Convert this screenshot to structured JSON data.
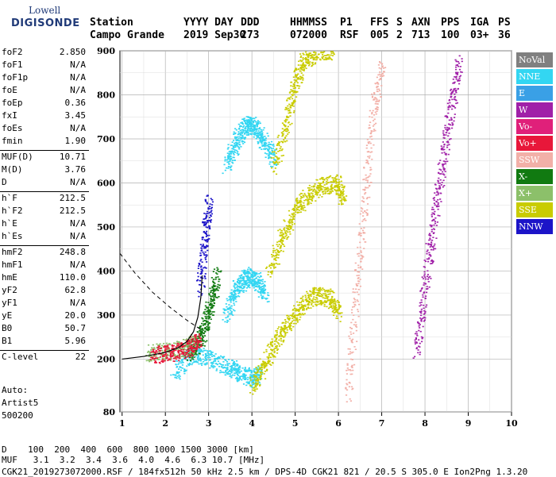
{
  "logo": {
    "brand": "Lowell",
    "product": "DIGISONDE"
  },
  "header": {
    "row1": [
      {
        "label": "Station"
      },
      {
        "label": "YYYY DAY"
      },
      {
        "label": "DDD"
      },
      {
        "label": "HHMMSS"
      },
      {
        "label": "P1"
      },
      {
        "label": "FFS"
      },
      {
        "label": "S"
      },
      {
        "label": "AXN"
      },
      {
        "label": "PPS"
      },
      {
        "label": "IGA"
      },
      {
        "label": "PS"
      }
    ],
    "row2": [
      {
        "label": "Campo Grande"
      },
      {
        "label": "2019 Sep30"
      },
      {
        "label": "273"
      },
      {
        "label": "072000"
      },
      {
        "label": "RSF"
      },
      {
        "label": "005"
      },
      {
        "label": "2"
      },
      {
        "label": "713"
      },
      {
        "label": "100"
      },
      {
        "label": "03+"
      },
      {
        "label": "36"
      }
    ]
  },
  "params": [
    {
      "k": "foF2",
      "v": "2.850"
    },
    {
      "k": "foF1",
      "v": "N/A"
    },
    {
      "k": "foF1p",
      "v": "N/A"
    },
    {
      "k": "foE",
      "v": "N/A"
    },
    {
      "k": "foEp",
      "v": "0.36"
    },
    {
      "k": "fxI",
      "v": "3.45"
    },
    {
      "k": "foEs",
      "v": "N/A"
    },
    {
      "k": "fmin",
      "v": "1.90"
    },
    {
      "k": "MUF(D)",
      "v": "10.71",
      "sep": true
    },
    {
      "k": "M(D)",
      "v": "3.76"
    },
    {
      "k": "D",
      "v": "N/A"
    },
    {
      "k": "h`F",
      "v": "212.5",
      "sep": true
    },
    {
      "k": "h`F2",
      "v": "212.5"
    },
    {
      "k": "h`E",
      "v": "N/A"
    },
    {
      "k": "h`Es",
      "v": "N/A"
    },
    {
      "k": "hmF2",
      "v": "248.8",
      "sep": true
    },
    {
      "k": "hmF1",
      "v": "N/A"
    },
    {
      "k": "hmE",
      "v": "110.0"
    },
    {
      "k": "yF2",
      "v": "62.8"
    },
    {
      "k": "yF1",
      "v": "N/A"
    },
    {
      "k": "yE",
      "v": "20.0"
    },
    {
      "k": "B0",
      "v": "50.7"
    },
    {
      "k": "B1",
      "v": "5.96"
    },
    {
      "k": "C-level",
      "v": "22",
      "sep": true
    }
  ],
  "auto": {
    "title": "Auto:",
    "artist": "Artist5",
    "version": "500200"
  },
  "legend": [
    {
      "label": "NoVal",
      "color": "#808080"
    },
    {
      "label": "NNE",
      "color": "#33d6f2"
    },
    {
      "label": "E",
      "color": "#3aa0e6"
    },
    {
      "label": "W",
      "color": "#a020a8"
    },
    {
      "label": "Vo-",
      "color": "#e0207a"
    },
    {
      "label": "Vo+",
      "color": "#e8173a"
    },
    {
      "label": "SSW",
      "color": "#f2b0a8"
    },
    {
      "label": "X-",
      "color": "#117a11"
    },
    {
      "label": "X+",
      "color": "#8cc06a"
    },
    {
      "label": "SSE",
      "color": "#c9cc00"
    },
    {
      "label": "NNW",
      "color": "#1c14c8"
    }
  ],
  "footer": {
    "d_row": "D    100  200  400  600  800 1000 1500 3000 [km]",
    "muf_row": "MUF   3.1  3.2  3.4  3.6  4.0  4.6  6.3 10.7 [MHz]",
    "file_row": "CGK21_2019273072000.RSF / 184fx512h 50 kHz 2.5 km / DPS-4D CGK21 821 / 20.5 S 305.0 E Ion2Png 1.3.20"
  },
  "chart_data": {
    "type": "scatter",
    "title": "",
    "xlabel": "",
    "ylabel": "",
    "xlim": [
      0.95,
      10.0
    ],
    "ylim": [
      80,
      900
    ],
    "x_ticks": [
      "1",
      "2",
      "3",
      "4",
      "5",
      "6",
      "7",
      "8",
      "9",
      "10"
    ],
    "y_ticks": [
      "80",
      "200",
      "300",
      "400",
      "500",
      "600",
      "700",
      "800",
      "900"
    ],
    "grid": true,
    "profile_curve": {
      "x": [
        1.0,
        1.5,
        2.0,
        2.3,
        2.5,
        2.65,
        2.75,
        2.82,
        2.85
      ],
      "y": [
        200,
        206,
        215,
        226,
        240,
        262,
        295,
        340,
        390
      ]
    },
    "extrapolation_curve": {
      "x": [
        0.95,
        1.3,
        1.7,
        2.1,
        2.5,
        2.85
      ],
      "y": [
        440,
        395,
        352,
        318,
        288,
        265
      ]
    },
    "traces": [
      {
        "name": "NNE",
        "color": "#33d6f2",
        "x": [
          3.4,
          3.6,
          3.8,
          3.95,
          4.1,
          4.3,
          4.5
        ],
        "y": [
          640,
          690,
          725,
          735,
          720,
          690,
          650
        ]
      },
      {
        "name": "NNE",
        "color": "#33d6f2",
        "x": [
          3.4,
          3.6,
          3.8,
          3.95,
          4.1,
          4.3
        ],
        "y": [
          300,
          360,
          380,
          390,
          380,
          345
        ]
      },
      {
        "name": "NNE",
        "color": "#33d6f2",
        "x": [
          2.2,
          2.6,
          3.0,
          3.4,
          3.7,
          3.95,
          4.2
        ],
        "y": [
          170,
          210,
          205,
          185,
          170,
          155,
          170
        ]
      },
      {
        "name": "SSE",
        "color": "#c9cc00",
        "x": [
          4.5,
          4.8,
          5.0,
          5.2,
          5.5,
          5.9
        ],
        "y": [
          640,
          740,
          830,
          880,
          900,
          900
        ]
      },
      {
        "name": "SSE",
        "color": "#c9cc00",
        "x": [
          4.4,
          4.7,
          5.0,
          5.3,
          5.6,
          5.95,
          6.1
        ],
        "y": [
          400,
          480,
          540,
          575,
          595,
          600,
          560
        ]
      },
      {
        "name": "SSE",
        "color": "#c9cc00",
        "x": [
          4.0,
          4.3,
          4.6,
          4.9,
          5.2,
          5.5,
          5.8,
          6.0
        ],
        "y": [
          140,
          190,
          250,
          295,
          330,
          345,
          340,
          300
        ]
      },
      {
        "name": "SSW",
        "color": "#f2b0a8",
        "x": [
          6.2,
          6.4,
          6.6,
          6.8,
          7.0
        ],
        "y": [
          120,
          350,
          560,
          760,
          880
        ]
      },
      {
        "name": "X-",
        "color": "#117a11",
        "x": [
          2.5,
          2.75,
          2.9,
          3.05,
          3.2
        ],
        "y": [
          215,
          235,
          275,
          330,
          395
        ]
      },
      {
        "name": "X+",
        "color": "#8cc06a",
        "x": [
          1.6,
          2.0,
          2.4,
          2.7
        ],
        "y": [
          215,
          218,
          225,
          240
        ]
      },
      {
        "name": "Vo+",
        "color": "#e8173a",
        "x": [
          1.7,
          2.1,
          2.5,
          2.8
        ],
        "y": [
          210,
          214,
          222,
          245
        ]
      },
      {
        "name": "NNW",
        "color": "#1c14c8",
        "x": [
          2.8,
          2.9,
          3.0
        ],
        "y": [
          360,
          480,
          560
        ]
      },
      {
        "name": "W",
        "color": "#a020a8",
        "x": [
          7.8,
          8.0,
          8.2,
          8.4,
          8.6,
          8.8
        ],
        "y": [
          220,
          380,
          520,
          650,
          780,
          880
        ]
      }
    ]
  }
}
